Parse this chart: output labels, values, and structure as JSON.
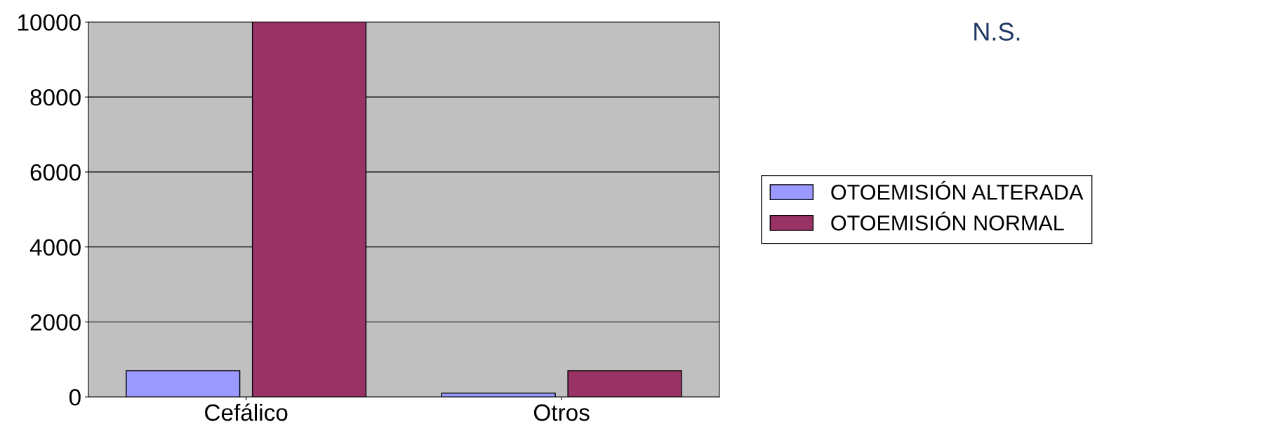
{
  "chart_data": {
    "type": "bar",
    "categories": [
      "Cefálico",
      "Otros"
    ],
    "series": [
      {
        "name": "OTOEMISIÓN ALTERADA",
        "color": "#9999ff",
        "values": [
          700,
          100
        ]
      },
      {
        "name": "OTOEMISIÓN NORMAL",
        "color": "#993366",
        "values": [
          10000,
          700
        ]
      }
    ],
    "ylim": [
      0,
      10000
    ],
    "yticks": [
      0,
      2000,
      4000,
      6000,
      8000,
      10000
    ],
    "grid": "y",
    "legend": "right",
    "annotations": [
      "N.S."
    ]
  }
}
